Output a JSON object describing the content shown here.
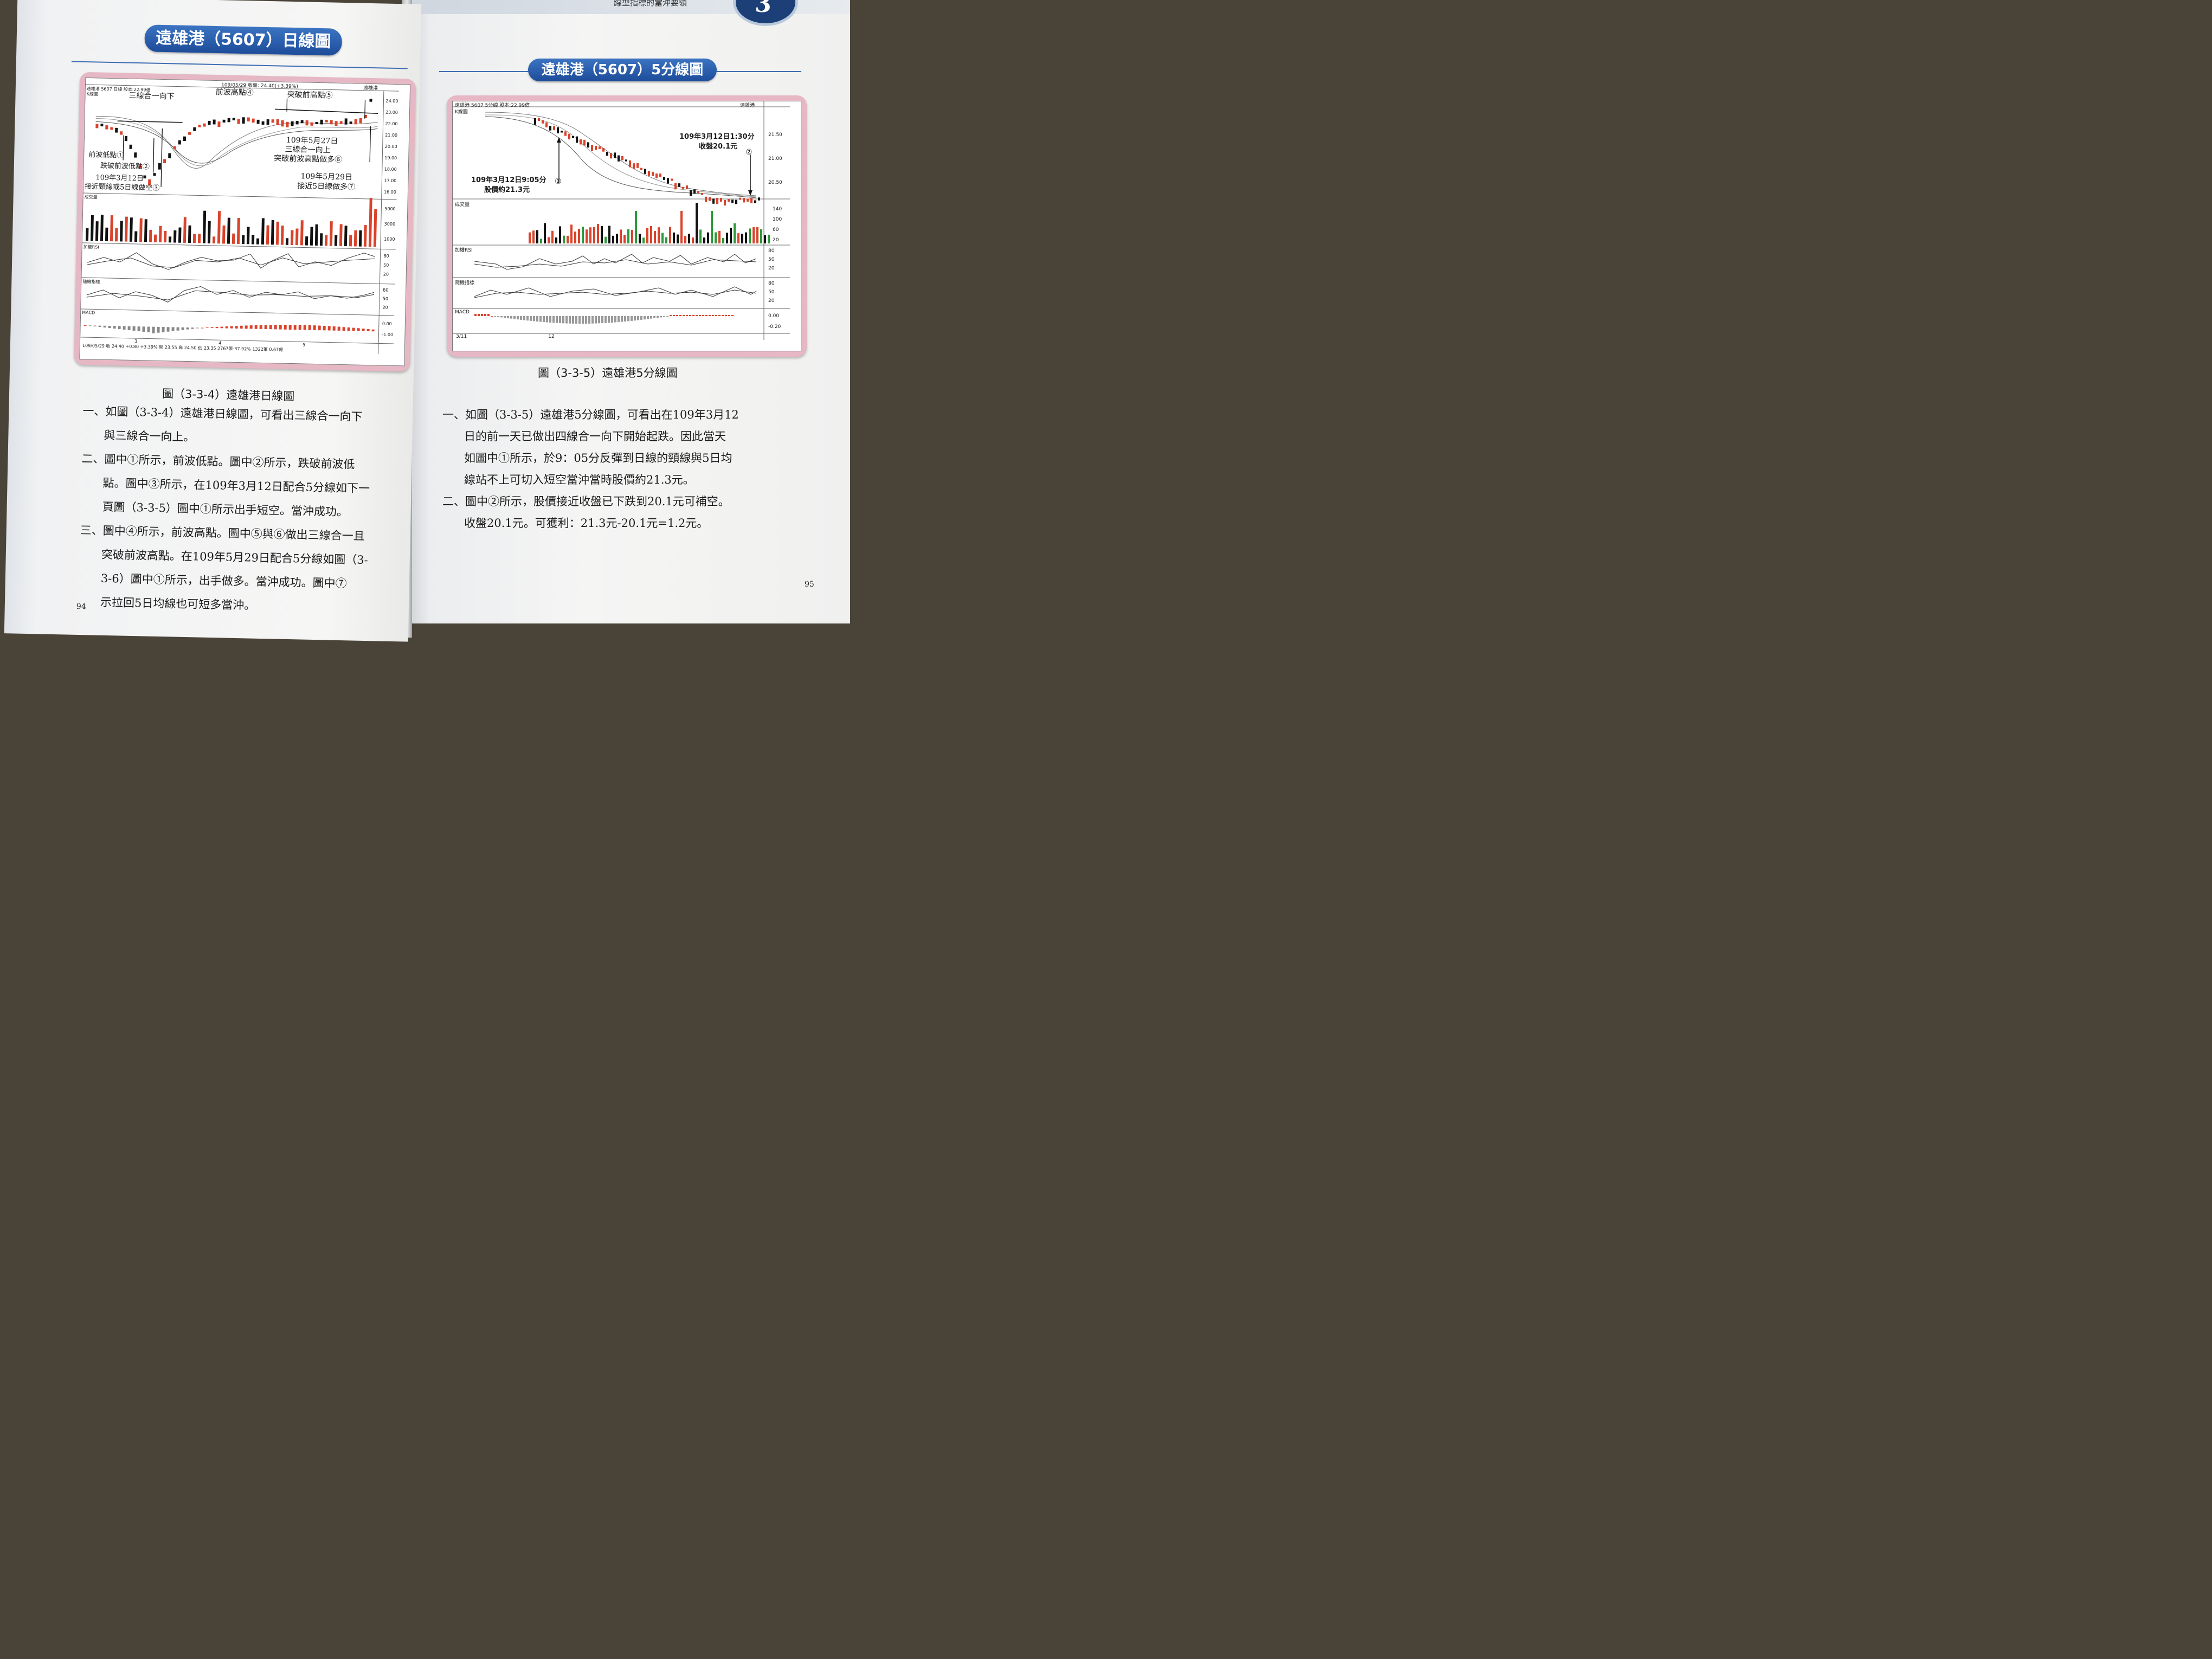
{
  "left_page": {
    "title": "遠雄港（5607）日線圖",
    "chart": {
      "header": "109/05/29 收盤: 24.40(+3.39%)",
      "stock_label": "遠雄港",
      "info": "遠雄港 5607 日線 股本:22.99億",
      "panel_k": "K線圖",
      "annotations": {
        "three_down": "三線合一向下",
        "prev_high": "前波高點④",
        "break_high": "突破前高點⑤",
        "prev_low": "前波低點①",
        "break_low": "跌破前波低點②",
        "date1": "109年3月12日",
        "short_note": "接近頸線或5日線做空③",
        "date2": "109年5月27日",
        "three_up": "三線合一向上",
        "long_note": "突破前波高點做多⑥",
        "date3": "109年5月29日",
        "near5": "接近5日線做多⑦"
      },
      "volume_label": "成交量",
      "rsi_label": "加權RSI",
      "kd_label": "隨機指標",
      "macd_label": "MACD",
      "price_ticks": [
        "24.00",
        "23.00",
        "22.00",
        "21.00",
        "20.00",
        "19.00",
        "18.00",
        "17.00",
        "16.00"
      ],
      "volume_ticks": [
        "5000",
        "3000",
        "1000"
      ],
      "osc_ticks": [
        "80",
        "50",
        "20"
      ],
      "macd_ticks": [
        "0.00",
        "-1.00"
      ],
      "x_ticks": [
        "3",
        "4",
        "5"
      ],
      "footer": "109/05/29 收 24.40 +0.80 +3.39% 開 23.55 高 24.50 低 23.35 2767張-37.92% 1322筆 0.67億"
    },
    "caption": "圖（3-3-4）遠雄港日線圖",
    "paragraphs": [
      "一、如圖（3-3-4）遠雄港日線圖，可看出三線合一向下",
      "與三線合一向上。",
      "二、圖中①所示，前波低點。圖中②所示，跌破前波低",
      "點。圖中③所示，在109年3月12日配合5分線如下一",
      "頁圖（3-3-5）圖中①所示出手短空。當沖成功。",
      "三、圖中④所示，前波高點。圖中⑤與⑥做出三線合一且",
      "突破前波高點。在109年5月29日配合5分線如圖（3-",
      "3-6）圖中①所示，出手做多。當沖成功。圖中⑦",
      "示拉回5日均線也可短多當沖。"
    ],
    "page_number": "94"
  },
  "right_page": {
    "running_header": "線型指標的當沖要領",
    "chapter_number": "3",
    "title": "遠雄港（5607）5分線圖",
    "chart": {
      "info": "遠雄港 5607 5分線 股本:22.99億",
      "stock_label": "遠雄港",
      "panel_k": "K線圖",
      "annotations": {
        "close_time": "109年3月12日1:30分",
        "close_price": "收盤20.1元",
        "open_time": "109年3月12日9:05分",
        "open_price": "股價約21.3元",
        "mark1": "①",
        "mark2": "②"
      },
      "volume_label": "成交量",
      "rsi_label": "加權RSI",
      "kd_label": "隨機指標",
      "macd_label": "MACD",
      "price_ticks": [
        "21.50",
        "21.00",
        "20.50"
      ],
      "volume_ticks": [
        "140",
        "100",
        "60",
        "20"
      ],
      "osc_ticks": [
        "80",
        "50",
        "20"
      ],
      "macd_ticks": [
        "0.00",
        "-0.20"
      ],
      "x_ticks": [
        "3/11",
        "12"
      ]
    },
    "caption": "圖（3-3-5）遠雄港5分線圖",
    "paragraphs": [
      "一、如圖（3-3-5）遠雄港5分線圖，可看出在109年3月12",
      "日的前一天已做出四線合一向下開始起跌。因此當天",
      "如圖中①所示，於9：05分反彈到日線的頸線與5日均",
      "線站不上可切入短空當沖當時股價約21.3元。",
      "二、圖中②所示，股價接近收盤已下跌到20.1元可補空。",
      "收盤20.1元。可獲利：21.3元-20.1元=1.2元。"
    ],
    "page_number": "95"
  },
  "colors": {
    "title_blue": "#2a5fae",
    "frame_pink": "#e6b7c4",
    "up_red": "#d9432b",
    "down_black": "#111111",
    "green": "#2c9a3a"
  }
}
